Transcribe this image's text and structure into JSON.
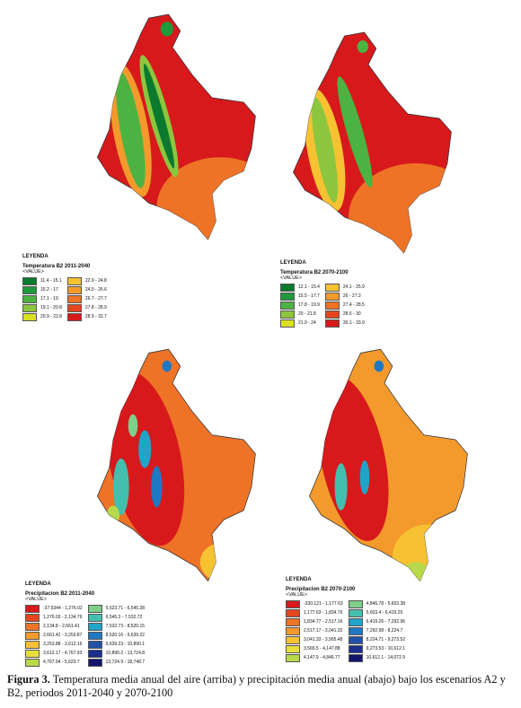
{
  "panels": [
    {
      "legend": {
        "heading": "LEYENDA",
        "title": "Temperatura B2 2011-2040",
        "value_header": "<VALUE>",
        "items": [
          {
            "label": "11.4 - 15.1",
            "color": "#0b7a2e"
          },
          {
            "label": "15.2 - 17",
            "color": "#1f9a3a"
          },
          {
            "label": "17.1 - 19",
            "color": "#4cb342"
          },
          {
            "label": "19.1 - 20.8",
            "color": "#8cc63f"
          },
          {
            "label": "20.9 - 22.8",
            "color": "#d9e021"
          },
          {
            "label": "22.9 - 24.8",
            "color": "#f7c232"
          },
          {
            "label": "24.9 - 26.6",
            "color": "#f49a2c"
          },
          {
            "label": "26.7 - 27.7",
            "color": "#ee7326"
          },
          {
            "label": "27.8 - 28.9",
            "color": "#e6461f"
          },
          {
            "label": "28.9 - 32.7",
            "color": "#d7191c"
          }
        ]
      }
    },
    {
      "legend": {
        "heading": "LEYENDA",
        "title": "Temperatura B2 2070-2100",
        "value_header": "<VALUE>",
        "items": [
          {
            "label": "12.1 - 15.4",
            "color": "#0b7a2e"
          },
          {
            "label": "15.5 - 17.7",
            "color": "#1f9a3a"
          },
          {
            "label": "17.8 - 19.9",
            "color": "#4cb342"
          },
          {
            "label": "20 - 21.8",
            "color": "#8cc63f"
          },
          {
            "label": "21.9 - 24",
            "color": "#d9e021"
          },
          {
            "label": "24.1 - 25.9",
            "color": "#f7c232"
          },
          {
            "label": "26 - 27.3",
            "color": "#f49a2c"
          },
          {
            "label": "27.4 - 28.5",
            "color": "#ee7326"
          },
          {
            "label": "28.6 - 30",
            "color": "#e6461f"
          },
          {
            "label": "30.1 - 33.9",
            "color": "#d7191c"
          }
        ]
      }
    },
    {
      "legend": {
        "heading": "LEYENDA",
        "title": "Precipitacion B2 2011-2040",
        "value_header": "<VALUE>",
        "items": [
          {
            "label": "-37.5344 - 1,276.02",
            "color": "#d7191c"
          },
          {
            "label": "1,276.03 - 2,134.79",
            "color": "#e6461f"
          },
          {
            "label": "2,134.8 - 2,661.41",
            "color": "#ee7326"
          },
          {
            "label": "2,661.42 - 3,253.87",
            "color": "#f49a2c"
          },
          {
            "label": "3,253.88 - 3,612.16",
            "color": "#f7c232"
          },
          {
            "label": "3,612.17 - 4,767.93",
            "color": "#e8e03a"
          },
          {
            "label": "4,767.94 - 5,623.7",
            "color": "#b8d94a"
          },
          {
            "label": "5,623.71 - 6,545.28",
            "color": "#7fcf8a"
          },
          {
            "label": "6,545.3 - 7,532.72",
            "color": "#43bfae"
          },
          {
            "label": "7,532.73 - 8,520.15",
            "color": "#20a4c8"
          },
          {
            "label": "8,520.16 - 9,639.22",
            "color": "#1f78c2"
          },
          {
            "label": "9,639.23 - 10,890.1",
            "color": "#2351a8"
          },
          {
            "label": "10,890.2 - 13,724.8",
            "color": "#1c2f8f"
          },
          {
            "label": "13,724.9 - 18,748.7",
            "color": "#14166e"
          }
        ]
      }
    },
    {
      "legend": {
        "heading": "LEYENDA",
        "title": "Precipitacion B2 2070-2100",
        "value_header": "<VALUE>",
        "items": [
          {
            "label": "-330.121 - 1,177.63",
            "color": "#d7191c"
          },
          {
            "label": "1,177.63 - 1,834.76",
            "color": "#e6461f"
          },
          {
            "label": "1,834.77 - 2,517.16",
            "color": "#ee7326"
          },
          {
            "label": "2,517.17 - 3,041.32",
            "color": "#f49a2c"
          },
          {
            "label": "3,041.33 - 3,565.48",
            "color": "#f7c232"
          },
          {
            "label": "3,565.5 - 4,147.88",
            "color": "#e8e03a"
          },
          {
            "label": "4,147.9 - 4,846.77",
            "color": "#b8d94a"
          },
          {
            "label": "4,846.78 - 5,603.38",
            "color": "#7fcf8a"
          },
          {
            "label": "5,603.4 - 6,419.25",
            "color": "#43bfae"
          },
          {
            "label": "6,419.26 - 7,292.96",
            "color": "#20a4c8"
          },
          {
            "label": "7,292.98 - 8,224.7",
            "color": "#1f78c2"
          },
          {
            "label": "8,224.71 - 9,273.52",
            "color": "#2351a8"
          },
          {
            "label": "9,273.53 - 10,612.1",
            "color": "#1c2f8f"
          },
          {
            "label": "10,612.1 - 14,072.9",
            "color": "#14166e"
          }
        ]
      }
    }
  ],
  "caption": {
    "label": "Figura 3.",
    "text": "Temperatura media anual del aire (arriba) y precipitación media anual (abajo) bajo los escenarios A2 y B2, periodos 2011-2040 y 2070-2100"
  }
}
